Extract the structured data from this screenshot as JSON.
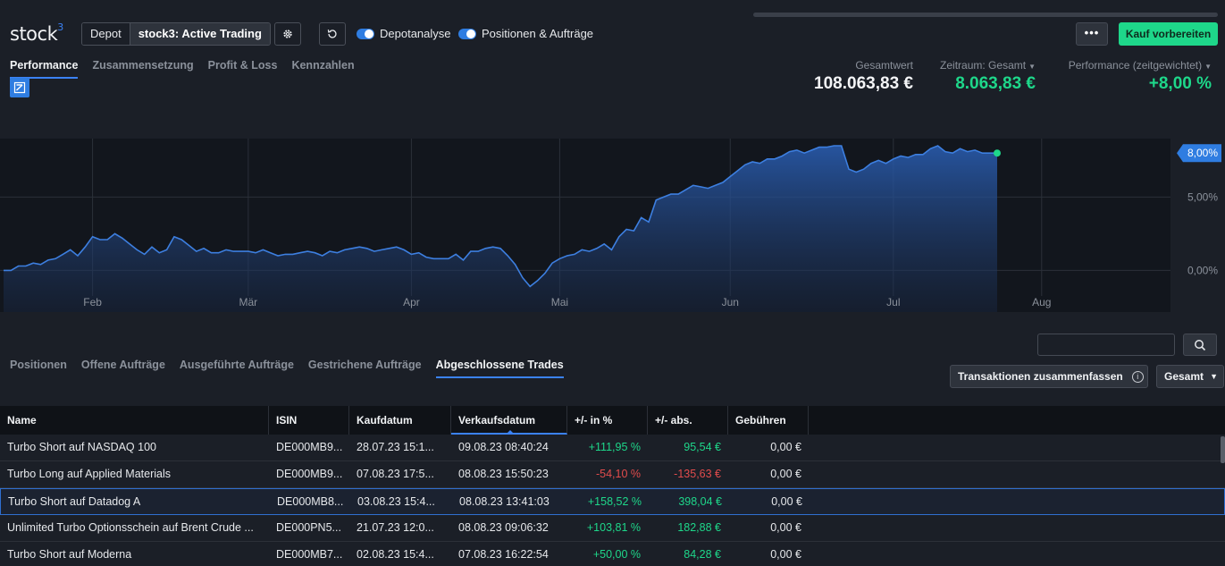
{
  "header": {
    "logo_text": "stock",
    "logo_sup": "3",
    "depot_label": "Depot",
    "depot_value": "stock3: Active Trading",
    "toggle_depotanalyse": "Depotanalyse",
    "toggle_positionen": "Positionen & Aufträge",
    "more_label": "•••",
    "buy_label": "Kauf vorbereiten"
  },
  "main_tabs": [
    {
      "label": "Performance",
      "active": true
    },
    {
      "label": "Zusammensetzung",
      "active": false
    },
    {
      "label": "Profit & Loss",
      "active": false
    },
    {
      "label": "Kennzahlen",
      "active": false
    }
  ],
  "kpis": {
    "gesamtwert_label": "Gesamtwert",
    "gesamtwert_value": "108.063,83 €",
    "zeitraum_label": "Zeitraum: Gesamt",
    "zeitraum_value": "8.063,83 €",
    "performance_label": "Performance (zeitgewichtet)",
    "performance_value": "+8,00 %"
  },
  "colors": {
    "accent": "#3b82f6",
    "positive": "#1ed78a",
    "negative": "#e24c4c",
    "line": "#3d7fe0"
  },
  "chart_data": {
    "type": "area",
    "x_tick_labels": [
      "Feb",
      "Mär",
      "Apr",
      "Mai",
      "Jun",
      "Jul",
      "Aug"
    ],
    "y_tick_labels": [
      "0,00%",
      "5,00%"
    ],
    "y_ticks": [
      0,
      5
    ],
    "ylim": [
      -1.5,
      8.5
    ],
    "current_label": "8,00%",
    "current_value": 8.0,
    "y_unit": "%",
    "grid": true,
    "x_tick_index": [
      12,
      33,
      55,
      75,
      98,
      120,
      140
    ],
    "values": [
      0.0,
      0.0,
      0.3,
      0.3,
      0.5,
      0.4,
      0.7,
      0.8,
      1.1,
      1.4,
      1.0,
      1.6,
      2.3,
      2.1,
      2.1,
      2.5,
      2.2,
      1.8,
      1.4,
      1.1,
      1.6,
      1.2,
      1.4,
      2.3,
      2.1,
      1.7,
      1.3,
      1.5,
      1.2,
      1.2,
      1.4,
      1.3,
      1.3,
      1.3,
      1.2,
      1.4,
      1.2,
      1.0,
      1.1,
      1.1,
      1.2,
      1.3,
      1.2,
      1.0,
      1.3,
      1.2,
      1.4,
      1.5,
      1.6,
      1.5,
      1.3,
      1.4,
      1.5,
      1.6,
      1.4,
      1.1,
      1.2,
      0.9,
      0.8,
      0.8,
      0.8,
      1.1,
      0.7,
      1.3,
      1.3,
      1.5,
      1.6,
      1.5,
      1.0,
      0.4,
      -0.5,
      -1.1,
      -0.7,
      -0.2,
      0.5,
      0.8,
      1.0,
      1.1,
      1.4,
      1.3,
      1.5,
      1.8,
      1.4,
      2.3,
      2.8,
      2.7,
      3.6,
      3.3,
      4.8,
      5.0,
      5.2,
      5.2,
      5.5,
      5.8,
      5.7,
      5.6,
      5.8,
      6.0,
      6.4,
      6.8,
      7.2,
      7.4,
      7.3,
      7.6,
      7.6,
      7.8,
      8.1,
      8.2,
      8.0,
      8.2,
      8.4,
      8.4,
      8.5,
      8.5,
      6.9,
      6.7,
      6.9,
      7.3,
      7.5,
      7.3,
      7.6,
      7.8,
      7.7,
      7.9,
      7.9,
      8.3,
      8.5,
      8.1,
      8.0,
      8.3,
      8.1,
      8.2,
      8.0,
      8.0,
      8.0
    ]
  },
  "sub_tabs": [
    {
      "label": "Positionen",
      "active": false
    },
    {
      "label": "Offene Aufträge",
      "active": false
    },
    {
      "label": "Ausgeführte Aufträge",
      "active": false
    },
    {
      "label": "Gestrichene Aufträge",
      "active": false
    },
    {
      "label": "Abgeschlossene Trades",
      "active": true
    }
  ],
  "controls": {
    "search_placeholder": "",
    "merge_label": "Transaktionen zusammenfassen",
    "info_glyph": "i",
    "range_label": "Gesamt"
  },
  "table": {
    "headers": [
      "Name",
      "ISIN",
      "Kaufdatum",
      "Verkaufsdatum",
      "+/- in %",
      "+/- abs.",
      "Gebühren"
    ],
    "rows": [
      {
        "name": "Turbo Short auf NASDAQ 100",
        "isin": "DE000MB9...",
        "kauf": "28.07.23 15:1...",
        "verkauf": "09.08.23 08:40:24",
        "pct": "+111,95 %",
        "abs": "95,54 €",
        "geb": "0,00 €",
        "sign": "pos"
      },
      {
        "name": "Turbo Long auf Applied Materials",
        "isin": "DE000MB9...",
        "kauf": "07.08.23 17:5...",
        "verkauf": "08.08.23 15:50:23",
        "pct": "-54,10 %",
        "abs": "-135,63 €",
        "geb": "0,00 €",
        "sign": "neg"
      },
      {
        "name": "Turbo Short auf Datadog A",
        "isin": "DE000MB8...",
        "kauf": "03.08.23 15:4...",
        "verkauf": "08.08.23 13:41:03",
        "pct": "+158,52 %",
        "abs": "398,04 €",
        "geb": "0,00 €",
        "sign": "pos"
      },
      {
        "name": "Unlimited Turbo Optionsschein auf Brent Crude ...",
        "isin": "DE000PN5...",
        "kauf": "21.07.23 12:0...",
        "verkauf": "08.08.23 09:06:32",
        "pct": "+103,81 %",
        "abs": "182,88 €",
        "geb": "0,00 €",
        "sign": "pos"
      },
      {
        "name": "Turbo Short auf Moderna",
        "isin": "DE000MB7...",
        "kauf": "02.08.23 15:4...",
        "verkauf": "07.08.23 16:22:54",
        "pct": "+50,00 %",
        "abs": "84,28 €",
        "geb": "0,00 €",
        "sign": "pos"
      }
    ]
  }
}
